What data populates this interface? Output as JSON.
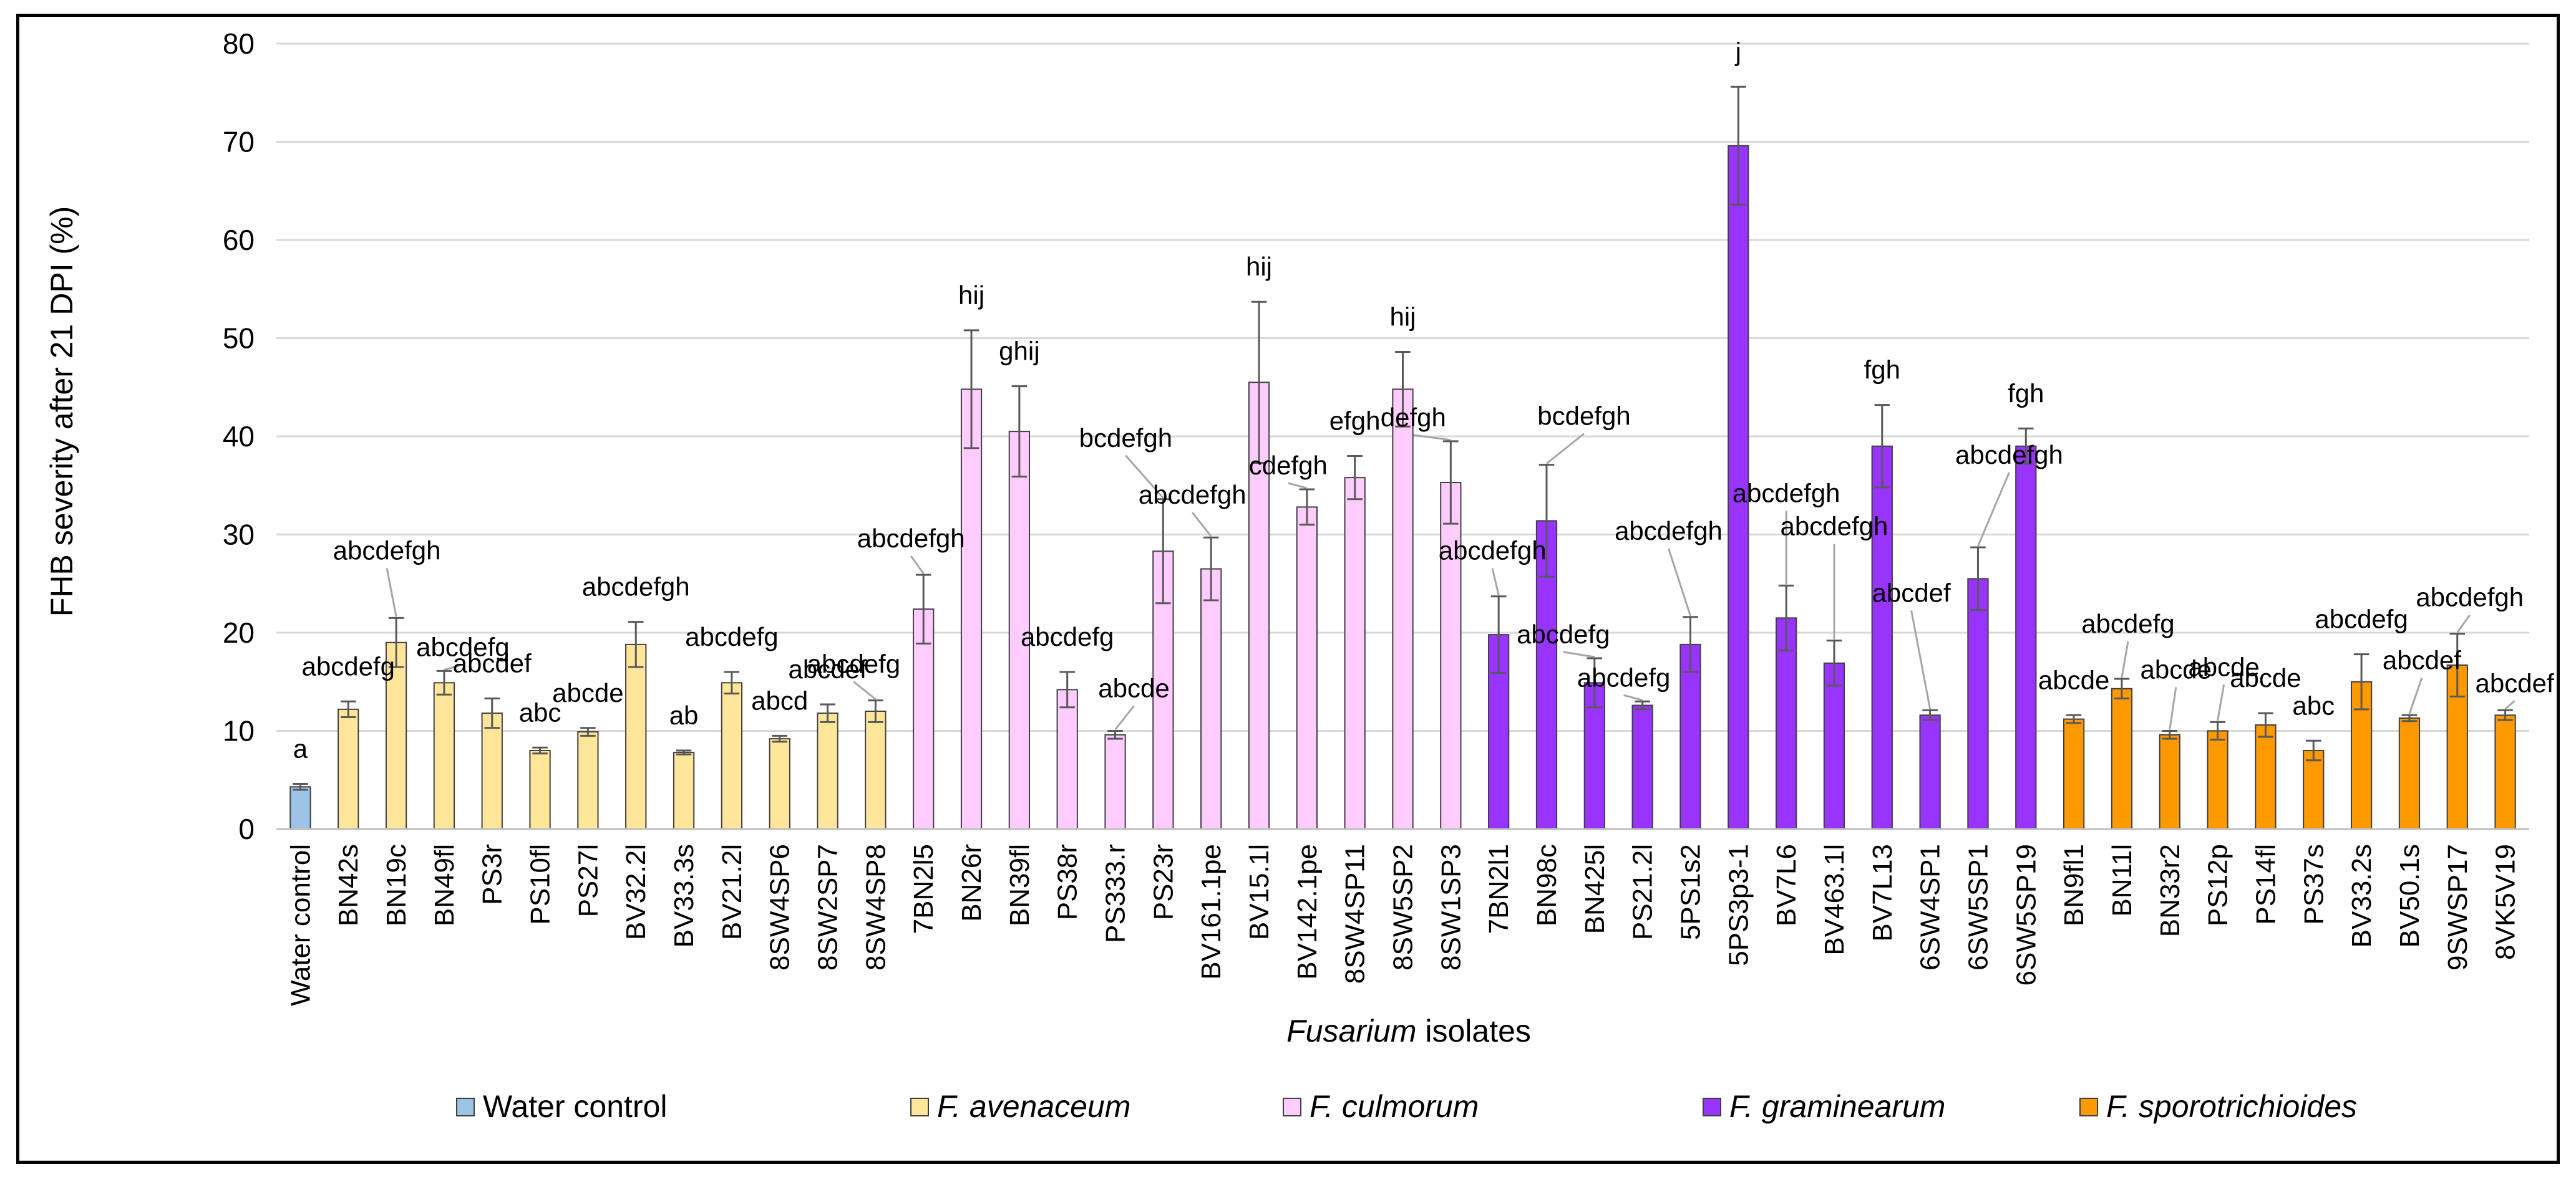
{
  "chart_data": {
    "type": "bar",
    "title": "",
    "ylabel": "FHB severity after 21 DPI (%)",
    "xlabel_italic": "Fusarium",
    "xlabel_rest": " isolates",
    "ylim": [
      0,
      80
    ],
    "yticks": [
      0,
      10,
      20,
      30,
      40,
      50,
      60,
      70,
      80
    ],
    "grid": true,
    "groups": {
      "control": {
        "label": "Water control",
        "italic": false,
        "color": "#9DC3E6"
      },
      "avenaceum": {
        "label": "F. avenaceum",
        "italic": true,
        "color": "#FFE699"
      },
      "culmorum": {
        "label": "F. culmorum",
        "italic": true,
        "color": "#FFCCFF"
      },
      "graminearum": {
        "label": "F. graminearum",
        "italic": true,
        "color": "#9933FF"
      },
      "sporotrichioides": {
        "label": "F. sporotrichioides",
        "italic": true,
        "color": "#FF9900"
      }
    },
    "legend_order": [
      "control",
      "avenaceum",
      "culmorum",
      "graminearum",
      "sporotrichioides"
    ],
    "bars": [
      {
        "name": "Water control",
        "group": "control",
        "value": 4.3,
        "err": 0.3,
        "sig": "a"
      },
      {
        "name": "BN42s",
        "group": "avenaceum",
        "value": 12.2,
        "err": 0.8,
        "sig": "abcdefg"
      },
      {
        "name": "BN19c",
        "group": "avenaceum",
        "value": 19.0,
        "err": 2.5,
        "sig": "abcdefgh"
      },
      {
        "name": "BN49fl",
        "group": "avenaceum",
        "value": 14.9,
        "err": 1.2,
        "sig": "abcdefg"
      },
      {
        "name": "PS3r",
        "group": "avenaceum",
        "value": 11.8,
        "err": 1.5,
        "sig": "abcdef"
      },
      {
        "name": "PS10fl",
        "group": "avenaceum",
        "value": 8.0,
        "err": 0.3,
        "sig": "abc"
      },
      {
        "name": "PS27l",
        "group": "avenaceum",
        "value": 9.9,
        "err": 0.4,
        "sig": "abcde"
      },
      {
        "name": "BV32.2l",
        "group": "avenaceum",
        "value": 18.8,
        "err": 2.3,
        "sig": "abcdefgh"
      },
      {
        "name": "BV33.3s",
        "group": "avenaceum",
        "value": 7.8,
        "err": 0.2,
        "sig": "ab"
      },
      {
        "name": "BV21.2l",
        "group": "avenaceum",
        "value": 14.9,
        "err": 1.1,
        "sig": "abcdefg"
      },
      {
        "name": "8SW4SP6",
        "group": "avenaceum",
        "value": 9.2,
        "err": 0.3,
        "sig": "abcd"
      },
      {
        "name": "8SW2SP7",
        "group": "avenaceum",
        "value": 11.8,
        "err": 0.9,
        "sig": "abcdef"
      },
      {
        "name": "8SW4SP8",
        "group": "avenaceum",
        "value": 12.0,
        "err": 1.1,
        "sig": "abcdefg"
      },
      {
        "name": "7BN2l5",
        "group": "culmorum",
        "value": 22.4,
        "err": 3.5,
        "sig": "abcdefgh"
      },
      {
        "name": "BN26r",
        "group": "culmorum",
        "value": 44.8,
        "err": 6.0,
        "sig": "hij"
      },
      {
        "name": "BN39fl",
        "group": "culmorum",
        "value": 40.5,
        "err": 4.6,
        "sig": "ghij"
      },
      {
        "name": "PS38r",
        "group": "culmorum",
        "value": 14.2,
        "err": 1.8,
        "sig": "abcdefg"
      },
      {
        "name": "PS333.r",
        "group": "culmorum",
        "value": 9.6,
        "err": 0.4,
        "sig": "abcde"
      },
      {
        "name": "PS23r",
        "group": "culmorum",
        "value": 28.3,
        "err": 5.3,
        "sig": "bcdefgh"
      },
      {
        "name": "BV161.1pe",
        "group": "culmorum",
        "value": 26.5,
        "err": 3.2,
        "sig": "abcdefgh"
      },
      {
        "name": "BV15.1l",
        "group": "culmorum",
        "value": 45.5,
        "err": 8.2,
        "sig": "hij"
      },
      {
        "name": "BV142.1pe",
        "group": "culmorum",
        "value": 32.8,
        "err": 1.8,
        "sig": "cdefgh"
      },
      {
        "name": "8SW4SP11",
        "group": "culmorum",
        "value": 35.8,
        "err": 2.2,
        "sig": "efgh"
      },
      {
        "name": "8SW5SP2",
        "group": "culmorum",
        "value": 44.8,
        "err": 3.8,
        "sig": "hij"
      },
      {
        "name": "8SW1SP3",
        "group": "culmorum",
        "value": 35.3,
        "err": 4.2,
        "sig": "defgh"
      },
      {
        "name": "7BN2l1",
        "group": "graminearum",
        "value": 19.8,
        "err": 3.9,
        "sig": "abcdefgh"
      },
      {
        "name": "BN98c",
        "group": "graminearum",
        "value": 31.4,
        "err": 5.7,
        "sig": "bcdefgh"
      },
      {
        "name": "BN425l",
        "group": "graminearum",
        "value": 14.9,
        "err": 2.5,
        "sig": "abcdefg"
      },
      {
        "name": "PS21.2l",
        "group": "graminearum",
        "value": 12.6,
        "err": 0.4,
        "sig": "abcdefg"
      },
      {
        "name": "5PS1s2",
        "group": "graminearum",
        "value": 18.8,
        "err": 2.8,
        "sig": "abcdefgh"
      },
      {
        "name": "5PS3p3-1",
        "group": "graminearum",
        "value": 69.6,
        "err": 6.0,
        "sig": "j"
      },
      {
        "name": "BV7L6",
        "group": "graminearum",
        "value": 21.5,
        "err": 3.3,
        "sig": "abcdefgh"
      },
      {
        "name": "BV463.1l",
        "group": "graminearum",
        "value": 16.9,
        "err": 2.3,
        "sig": "abcdefgh"
      },
      {
        "name": "BV7L13",
        "group": "graminearum",
        "value": 39.0,
        "err": 4.2,
        "sig": "fgh"
      },
      {
        "name": "6SW4SP1",
        "group": "graminearum",
        "value": 11.6,
        "err": 0.5,
        "sig": "abcdef"
      },
      {
        "name": "6SW5SP1",
        "group": "graminearum",
        "value": 25.5,
        "err": 3.2,
        "sig": "abcdefgh"
      },
      {
        "name": "6SW5SP19",
        "group": "graminearum",
        "value": 39.0,
        "err": 1.8,
        "sig": "fgh"
      },
      {
        "name": "BN9fl1",
        "group": "sporotrichioides",
        "value": 11.2,
        "err": 0.4,
        "sig": "abcde"
      },
      {
        "name": "BN11l",
        "group": "sporotrichioides",
        "value": 14.3,
        "err": 1.0,
        "sig": "abcdefg"
      },
      {
        "name": "BN33r2",
        "group": "sporotrichioides",
        "value": 9.6,
        "err": 0.4,
        "sig": "abcde"
      },
      {
        "name": "PS12p",
        "group": "sporotrichioides",
        "value": 10.0,
        "err": 0.9,
        "sig": "abcde"
      },
      {
        "name": "PS14fl",
        "group": "sporotrichioides",
        "value": 10.6,
        "err": 1.2,
        "sig": "abcde"
      },
      {
        "name": "PS37s",
        "group": "sporotrichioides",
        "value": 8.0,
        "err": 1.0,
        "sig": "abc"
      },
      {
        "name": "BV33.2s",
        "group": "sporotrichioides",
        "value": 15.0,
        "err": 2.8,
        "sig": "abcdefg"
      },
      {
        "name": "BV50.1s",
        "group": "sporotrichioides",
        "value": 11.3,
        "err": 0.3,
        "sig": "abcdef"
      },
      {
        "name": "9SWSP17",
        "group": "sporotrichioides",
        "value": 16.7,
        "err": 3.2,
        "sig": "abcdefgh"
      },
      {
        "name": "8VK5V19",
        "group": "sporotrichioides",
        "value": 11.6,
        "err": 0.5,
        "sig": "abcdef"
      }
    ]
  }
}
